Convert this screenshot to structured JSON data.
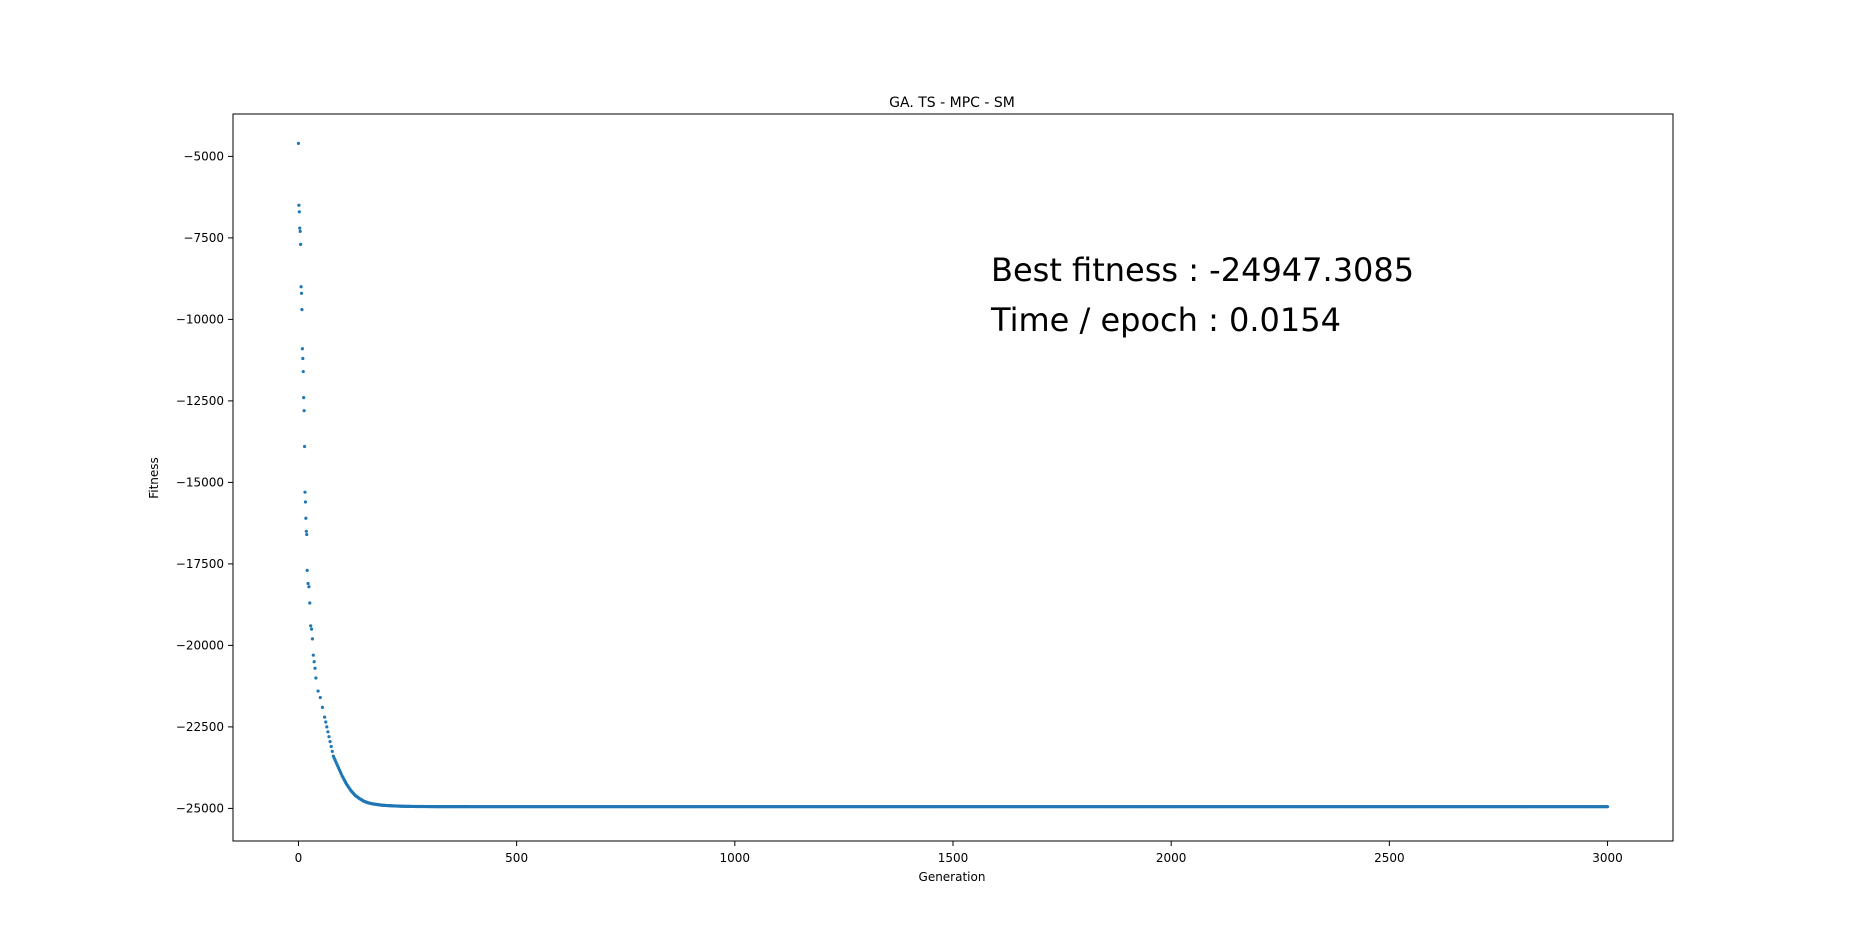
{
  "chart_data": {
    "type": "scatter",
    "title": "GA. TS - MPC - SM",
    "xlabel": "Generation",
    "ylabel": "Fitness",
    "xlim": [
      -150,
      3150
    ],
    "ylim": [
      -26000,
      -3700
    ],
    "xticks": [
      0,
      500,
      1000,
      1500,
      2000,
      2500,
      3000
    ],
    "yticks": [
      -5000,
      -7500,
      -10000,
      -12500,
      -15000,
      -17500,
      -20000,
      -22500,
      -25000
    ],
    "grid": false,
    "legend": "none",
    "marker_color": "#1f77b4",
    "annotations": [
      "Best fitness : -24947.3085",
      "Time / epoch : 0.0154"
    ],
    "series": [
      {
        "x": [
          0,
          1,
          2,
          3,
          4,
          5,
          6,
          7,
          8,
          9,
          10,
          11,
          12,
          13,
          14,
          15,
          16,
          17,
          18,
          19,
          20,
          22,
          24,
          26,
          28,
          30,
          32,
          34,
          36,
          38,
          40,
          45,
          50,
          55,
          60,
          65,
          70,
          75,
          80,
          90,
          100,
          110,
          120,
          130,
          140,
          150,
          160,
          170,
          180,
          190,
          200,
          220,
          240,
          260,
          300,
          350,
          400,
          500,
          600,
          700,
          800,
          900,
          1000,
          1200,
          1400,
          1600,
          1800,
          2000,
          2200,
          2400,
          2600,
          2800,
          3000
        ],
        "y": [
          -4600,
          -6500,
          -6700,
          -7200,
          -7300,
          -7700,
          -9000,
          -9200,
          -9700,
          -10900,
          -11200,
          -11600,
          -12400,
          -12800,
          -13900,
          -15300,
          -15600,
          -16100,
          -16500,
          -16600,
          -17700,
          -18100,
          -18200,
          -18700,
          -19400,
          -19500,
          -19800,
          -20300,
          -20500,
          -20700,
          -21000,
          -21400,
          -21600,
          -21900,
          -22200,
          -22500,
          -22800,
          -23100,
          -23400,
          -23700,
          -24000,
          -24250,
          -24450,
          -24600,
          -24700,
          -24780,
          -24830,
          -24860,
          -24880,
          -24900,
          -24910,
          -24925,
          -24935,
          -24940,
          -24944,
          -24946,
          -24947,
          -24947.3,
          -24947.3,
          -24947.3,
          -24947.3,
          -24947.3,
          -24947.3,
          -24947.3,
          -24947.3,
          -24947.3,
          -24947.3,
          -24947.3,
          -24947.3,
          -24947.3,
          -24947.3,
          -24947.3,
          -24947.3
        ]
      }
    ]
  }
}
